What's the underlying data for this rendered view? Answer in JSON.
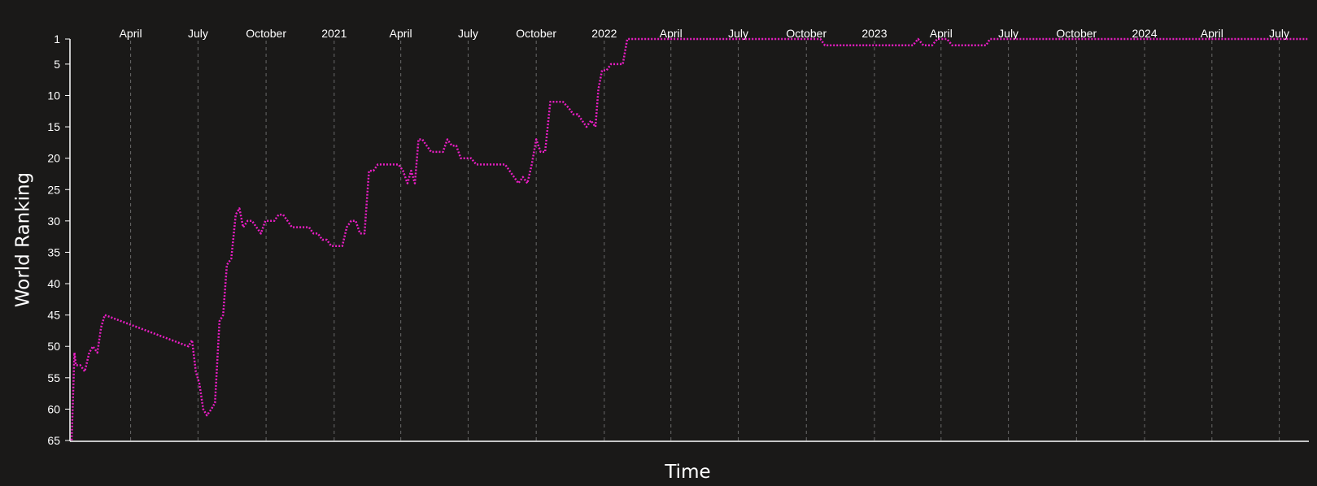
{
  "colors": {
    "background": "#1a1918",
    "series": "#e91ec4",
    "axis": "#ffffff",
    "grid": "#8a8a8a"
  },
  "chart_data": {
    "type": "line",
    "title": "",
    "xlabel": "Time",
    "ylabel": "World Ranking",
    "y_inverted": true,
    "ylim": [
      1,
      65
    ],
    "xlim": [
      "2020-01-10",
      "2024-08-10"
    ],
    "grid": "vertical dashed",
    "x_axis_position": "top",
    "x_ticks": [
      {
        "date": "2020-04-01",
        "label": "April"
      },
      {
        "date": "2020-07-01",
        "label": "July"
      },
      {
        "date": "2020-10-01",
        "label": "October"
      },
      {
        "date": "2021-01-01",
        "label": "2021"
      },
      {
        "date": "2021-04-01",
        "label": "April"
      },
      {
        "date": "2021-07-01",
        "label": "July"
      },
      {
        "date": "2021-10-01",
        "label": "October"
      },
      {
        "date": "2022-01-01",
        "label": "2022"
      },
      {
        "date": "2022-04-01",
        "label": "April"
      },
      {
        "date": "2022-07-01",
        "label": "July"
      },
      {
        "date": "2022-10-01",
        "label": "October"
      },
      {
        "date": "2023-01-01",
        "label": "2023"
      },
      {
        "date": "2023-04-01",
        "label": "April"
      },
      {
        "date": "2023-07-01",
        "label": "July"
      },
      {
        "date": "2023-10-01",
        "label": "October"
      },
      {
        "date": "2024-01-01",
        "label": "2024"
      },
      {
        "date": "2024-04-01",
        "label": "April"
      },
      {
        "date": "2024-07-01",
        "label": "July"
      }
    ],
    "y_ticks": [
      1,
      5,
      10,
      15,
      20,
      25,
      30,
      35,
      40,
      45,
      50,
      55,
      60,
      65
    ],
    "series": [
      {
        "points": [
          [
            "2020-01-12",
            66
          ],
          [
            "2020-01-16",
            51
          ],
          [
            "2020-01-18",
            53
          ],
          [
            "2020-01-24",
            53
          ],
          [
            "2020-01-30",
            54
          ],
          [
            "2020-02-05",
            51
          ],
          [
            "2020-02-10",
            50
          ],
          [
            "2020-02-16",
            51
          ],
          [
            "2020-02-21",
            47
          ],
          [
            "2020-02-26",
            45
          ],
          [
            "2020-06-18",
            50
          ],
          [
            "2020-06-23",
            49
          ],
          [
            "2020-06-28",
            54
          ],
          [
            "2020-07-03",
            56
          ],
          [
            "2020-07-08",
            60
          ],
          [
            "2020-07-13",
            61
          ],
          [
            "2020-07-19",
            60
          ],
          [
            "2020-07-24",
            59
          ],
          [
            "2020-07-30",
            46
          ],
          [
            "2020-08-04",
            45
          ],
          [
            "2020-08-09",
            37
          ],
          [
            "2020-08-15",
            36
          ],
          [
            "2020-08-21",
            29
          ],
          [
            "2020-08-26",
            28
          ],
          [
            "2020-08-31",
            31
          ],
          [
            "2020-09-06",
            30
          ],
          [
            "2020-09-12",
            30
          ],
          [
            "2020-09-18",
            31
          ],
          [
            "2020-09-24",
            32
          ],
          [
            "2020-09-30",
            30
          ],
          [
            "2020-10-06",
            30
          ],
          [
            "2020-10-12",
            30
          ],
          [
            "2020-10-18",
            29
          ],
          [
            "2020-10-24",
            29
          ],
          [
            "2020-10-30",
            30
          ],
          [
            "2020-11-05",
            31
          ],
          [
            "2020-11-12",
            31
          ],
          [
            "2020-11-20",
            31
          ],
          [
            "2020-11-28",
            31
          ],
          [
            "2020-12-04",
            32
          ],
          [
            "2020-12-10",
            32
          ],
          [
            "2020-12-16",
            33
          ],
          [
            "2020-12-22",
            33
          ],
          [
            "2020-12-28",
            34
          ],
          [
            "2021-01-06",
            34
          ],
          [
            "2021-01-12",
            34
          ],
          [
            "2021-01-18",
            31
          ],
          [
            "2021-01-24",
            30
          ],
          [
            "2021-01-30",
            30
          ],
          [
            "2021-02-05",
            32
          ],
          [
            "2021-02-11",
            32
          ],
          [
            "2021-02-17",
            22
          ],
          [
            "2021-02-23",
            22
          ],
          [
            "2021-03-01",
            21
          ],
          [
            "2021-03-10",
            21
          ],
          [
            "2021-03-20",
            21
          ],
          [
            "2021-03-29",
            21
          ],
          [
            "2021-04-04",
            22
          ],
          [
            "2021-04-10",
            24
          ],
          [
            "2021-04-15",
            22
          ],
          [
            "2021-04-20",
            24
          ],
          [
            "2021-04-25",
            17
          ],
          [
            "2021-04-30",
            17
          ],
          [
            "2021-05-06",
            18
          ],
          [
            "2021-05-12",
            19
          ],
          [
            "2021-05-20",
            19
          ],
          [
            "2021-05-28",
            19
          ],
          [
            "2021-06-03",
            17
          ],
          [
            "2021-06-09",
            18
          ],
          [
            "2021-06-15",
            18
          ],
          [
            "2021-06-21",
            20
          ],
          [
            "2021-06-28",
            20
          ],
          [
            "2021-07-05",
            20
          ],
          [
            "2021-07-12",
            21
          ],
          [
            "2021-07-22",
            21
          ],
          [
            "2021-08-01",
            21
          ],
          [
            "2021-08-10",
            21
          ],
          [
            "2021-08-20",
            21
          ],
          [
            "2021-08-26",
            22
          ],
          [
            "2021-09-01",
            23
          ],
          [
            "2021-09-07",
            24
          ],
          [
            "2021-09-13",
            23
          ],
          [
            "2021-09-19",
            24
          ],
          [
            "2021-09-25",
            21
          ],
          [
            "2021-10-01",
            17
          ],
          [
            "2021-10-07",
            19
          ],
          [
            "2021-10-13",
            19
          ],
          [
            "2021-10-20",
            11
          ],
          [
            "2021-10-28",
            11
          ],
          [
            "2021-11-06",
            11
          ],
          [
            "2021-11-14",
            12
          ],
          [
            "2021-11-20",
            13
          ],
          [
            "2021-11-26",
            13
          ],
          [
            "2021-12-02",
            14
          ],
          [
            "2021-12-08",
            15
          ],
          [
            "2021-12-14",
            14
          ],
          [
            "2021-12-20",
            15
          ],
          [
            "2021-12-24",
            9
          ],
          [
            "2021-12-29",
            6
          ],
          [
            "2022-01-04",
            6
          ],
          [
            "2022-01-10",
            5
          ],
          [
            "2022-01-18",
            5
          ],
          [
            "2022-01-26",
            5
          ],
          [
            "2022-02-01",
            1
          ],
          [
            "2022-04-01",
            1
          ],
          [
            "2022-07-01",
            1
          ],
          [
            "2022-10-01",
            1
          ],
          [
            "2022-10-20",
            1
          ],
          [
            "2022-10-26",
            2
          ],
          [
            "2022-11-15",
            2
          ],
          [
            "2022-12-15",
            2
          ],
          [
            "2023-01-15",
            2
          ],
          [
            "2023-02-15",
            2
          ],
          [
            "2023-02-22",
            2
          ],
          [
            "2023-03-01",
            1
          ],
          [
            "2023-03-08",
            2
          ],
          [
            "2023-03-20",
            2
          ],
          [
            "2023-03-27",
            1
          ],
          [
            "2023-04-03",
            1
          ],
          [
            "2023-04-09",
            1
          ],
          [
            "2023-04-16",
            2
          ],
          [
            "2023-05-01",
            2
          ],
          [
            "2023-05-20",
            2
          ],
          [
            "2023-06-01",
            2
          ],
          [
            "2023-06-06",
            1
          ],
          [
            "2023-07-01",
            1
          ],
          [
            "2023-10-01",
            1
          ],
          [
            "2024-01-01",
            1
          ],
          [
            "2024-04-01",
            1
          ],
          [
            "2024-07-01",
            1
          ],
          [
            "2024-08-08",
            1
          ]
        ]
      }
    ]
  }
}
